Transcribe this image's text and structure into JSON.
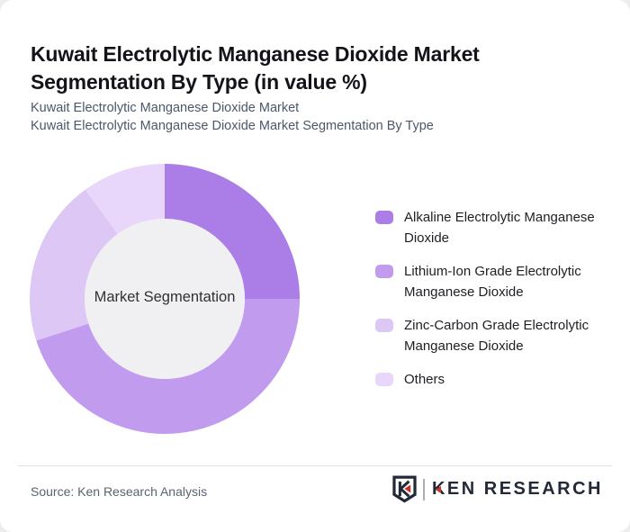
{
  "header": {
    "title": "Kuwait Electrolytic Manganese Dioxide Market Segmentation By Type (in value %)",
    "subtitle_line1": "Kuwait Electrolytic Manganese Dioxide Market",
    "subtitle_line2": "Kuwait Electrolytic Manganese Dioxide Market Segmentation By Type"
  },
  "chart_data": {
    "type": "pie",
    "subtype": "donut",
    "center_label": "Market Segmentation",
    "units": "value %",
    "start_angle_deg": 0,
    "direction": "clockwise",
    "legend_position": "right",
    "inner_circle_color": "#f0eff1",
    "segments": [
      {
        "label": "Alkaline Electrolytic Manganese Dioxide",
        "value": 25,
        "color": "#aa7de7"
      },
      {
        "label": "Lithium-Ion Grade Electrolytic Manganese Dioxide",
        "value": 45,
        "color": "#c19bee"
      },
      {
        "label": "Zinc-Carbon Grade Electrolytic Manganese Dioxide",
        "value": 20,
        "color": "#ddc7f5"
      },
      {
        "label": "Others",
        "value": 10,
        "color": "#e8d7fa"
      }
    ]
  },
  "footer": {
    "source": "Source: Ken Research Analysis",
    "logo_monogram": "K",
    "logo_text": "KEN RESEARCH",
    "logo_dark": "#232936",
    "logo_red": "#c4342d"
  }
}
